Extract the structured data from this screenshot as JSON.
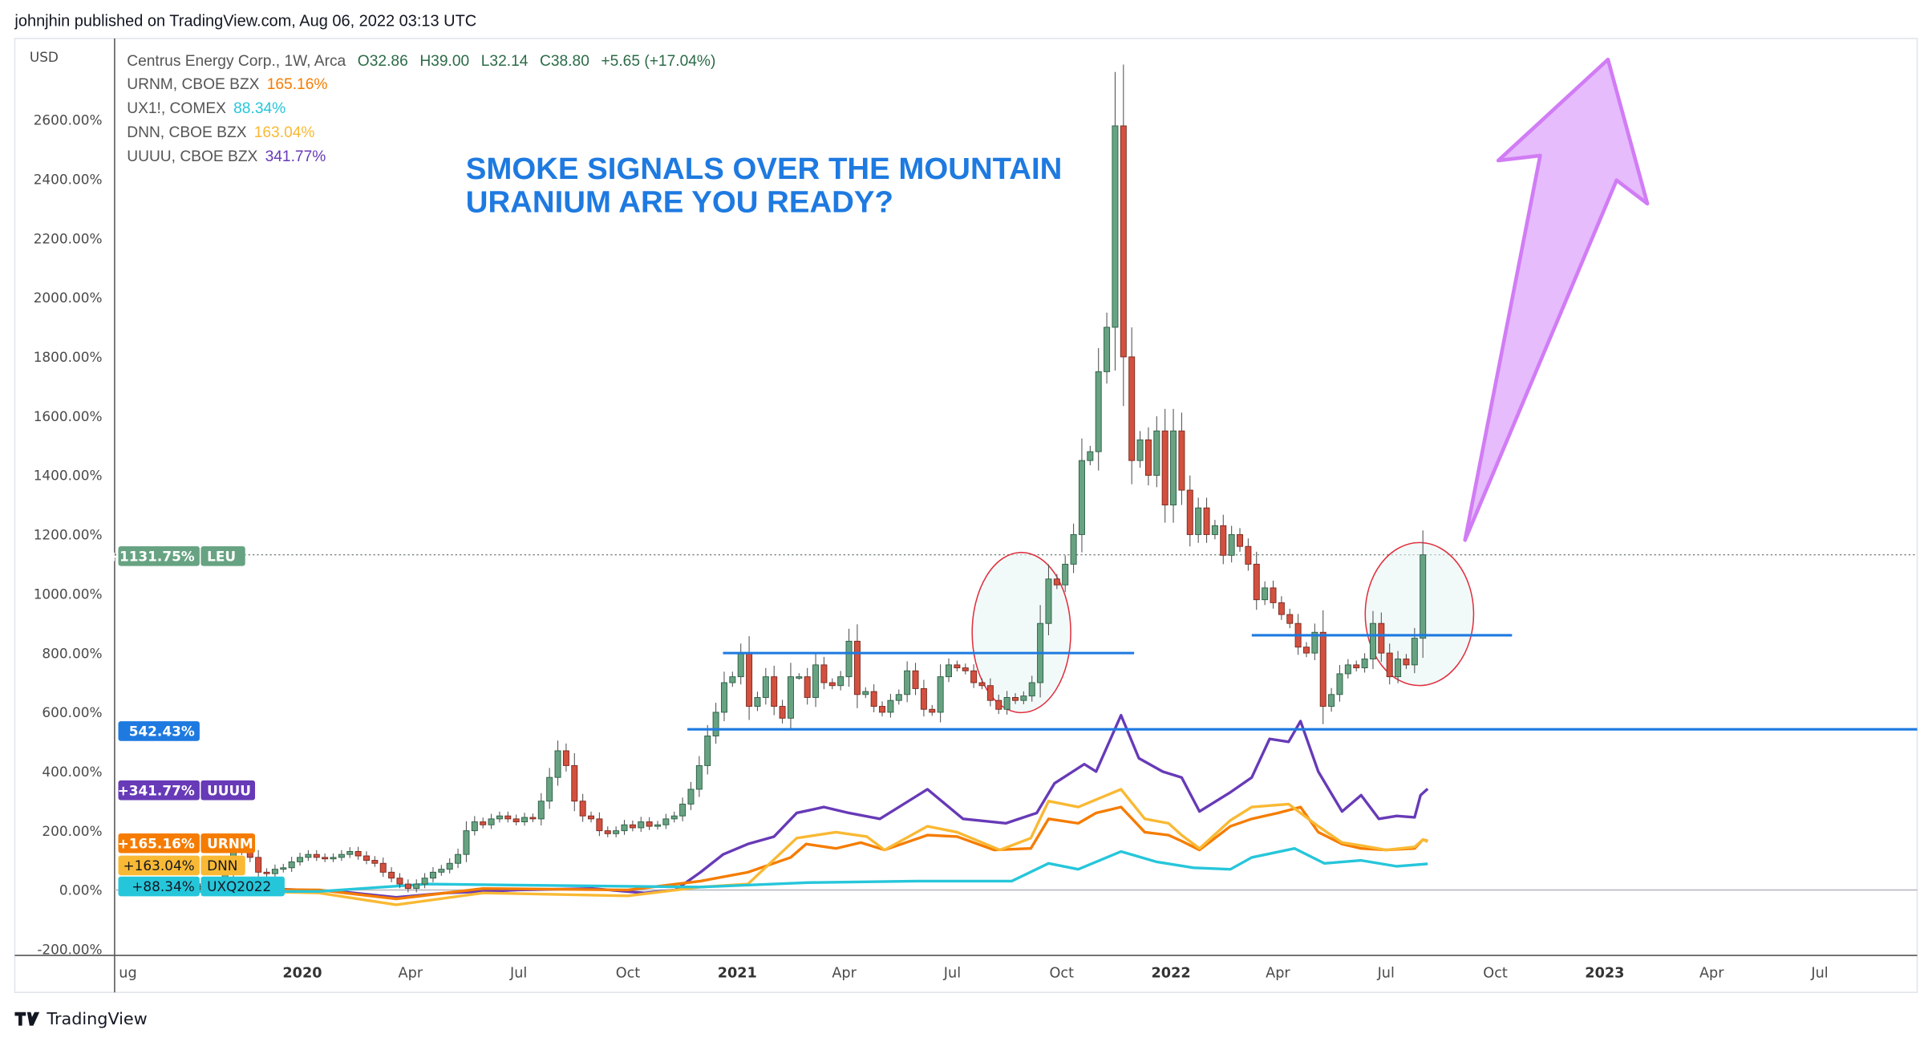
{
  "header": {
    "published": "johnjhin published on TradingView.com, Aug 06, 2022 03:13 UTC"
  },
  "footer": {
    "brand": "TradingView"
  },
  "legend": {
    "main": {
      "name": "Centrus Energy Corp., 1W, Arca",
      "o": "O32.86",
      "h": "H39.00",
      "l": "L32.14",
      "c": "C38.80",
      "chg": "+5.65 (+17.04%)"
    },
    "compares": [
      {
        "name": "URNM, CBOE BZX",
        "value": "165.16%",
        "color": "#f57c00"
      },
      {
        "name": "UX1!, COMEX",
        "value": "88.34%",
        "color": "#26c6da"
      },
      {
        "name": "DNN, CBOE BZX",
        "value": "163.04%",
        "color": "#f9b934"
      },
      {
        "name": "UUUU, CBOE BZX",
        "value": "341.77%",
        "color": "#673ab7"
      }
    ]
  },
  "annotation": {
    "line1": "SMOKE SIGNALS OVER THE MOUNTAIN",
    "line2": "URANIUM ARE YOU READY?",
    "color": "#1e7ae0"
  },
  "badges": [
    {
      "value": "+1131.75%",
      "label": "LEU",
      "color": "#67a382",
      "y_value": 1131.75
    },
    {
      "value": "542.43%",
      "label": "",
      "color": "#1e7ae0",
      "y_value": 542.43
    },
    {
      "value": "+341.77%",
      "label": "UUUU",
      "color": "#673ab7",
      "y_value": 341.77
    },
    {
      "value": "+165.16%",
      "label": "URNM",
      "color": "#f57c00",
      "y_value": 165.16
    },
    {
      "value": "+163.04%",
      "label": "DNN",
      "color": "#f9b934",
      "y_value": 163.04,
      "dark": true
    },
    {
      "value": "+88.34%",
      "label": "UXQ2022",
      "color": "#26c6da",
      "y_value": 88.34,
      "dark": true
    }
  ],
  "chart_data": {
    "type": "candlestick+line",
    "currency_label": "USD",
    "interval": "1W",
    "ylim": [
      -221,
      2875
    ],
    "xlim": [
      "2019-07-27",
      "2023-09-21"
    ],
    "y_ticks": [
      "-200.00%",
      "0.00%",
      "200.00%",
      "400.00%",
      "600.00%",
      "800.00%",
      "1000.00%",
      "1200.00%",
      "1400.00%",
      "1600.00%",
      "1800.00%",
      "2000.00%",
      "2200.00%",
      "2400.00%",
      "2600.00%"
    ],
    "x_ticks": [
      {
        "label": "ug",
        "date": "2019-08-01",
        "year": false
      },
      {
        "label": "2020",
        "date": "2020-01-01",
        "year": true
      },
      {
        "label": "Apr",
        "date": "2020-04-01",
        "year": false
      },
      {
        "label": "Jul",
        "date": "2020-07-01",
        "year": false
      },
      {
        "label": "Oct",
        "date": "2020-10-01",
        "year": false
      },
      {
        "label": "2021",
        "date": "2021-01-01",
        "year": true
      },
      {
        "label": "Apr",
        "date": "2021-04-01",
        "year": false
      },
      {
        "label": "Jul",
        "date": "2021-07-01",
        "year": false
      },
      {
        "label": "Oct",
        "date": "2021-10-01",
        "year": false
      },
      {
        "label": "2022",
        "date": "2022-01-01",
        "year": true
      },
      {
        "label": "Apr",
        "date": "2022-04-01",
        "year": false
      },
      {
        "label": "Jul",
        "date": "2022-07-01",
        "year": false
      },
      {
        "label": "Oct",
        "date": "2022-10-01",
        "year": false
      },
      {
        "label": "2023",
        "date": "2023-01-01",
        "year": true
      },
      {
        "label": "Apr",
        "date": "2023-04-01",
        "year": false
      },
      {
        "label": "Jul",
        "date": "2023-07-01",
        "year": false
      }
    ],
    "candles": {
      "name": "LEU",
      "first_date": "2019-10-07",
      "closes": [
        10,
        15,
        20,
        60,
        130,
        140,
        110,
        60,
        55,
        70,
        75,
        95,
        110,
        120,
        110,
        105,
        110,
        120,
        130,
        115,
        100,
        90,
        60,
        40,
        20,
        5,
        20,
        40,
        60,
        70,
        90,
        120,
        200,
        230,
        220,
        240,
        250,
        240,
        230,
        245,
        240,
        300,
        380,
        470,
        420,
        300,
        250,
        240,
        200,
        190,
        200,
        220,
        210,
        230,
        215,
        220,
        240,
        250,
        290,
        340,
        420,
        520,
        600,
        700,
        720,
        800,
        620,
        650,
        720,
        620,
        580,
        720,
        720,
        650,
        760,
        700,
        690,
        720,
        840,
        660,
        670,
        620,
        600,
        640,
        660,
        740,
        680,
        610,
        600,
        720,
        760,
        750,
        740,
        700,
        690,
        640,
        610,
        650,
        640,
        655,
        700,
        900,
        1050,
        1030,
        1100,
        1200,
        1450,
        1480,
        1750,
        1900,
        2580,
        1800,
        1450,
        1520,
        1400,
        1550,
        1300,
        1550,
        1350,
        1200,
        1290,
        1200,
        1230,
        1130,
        1200,
        1160,
        1100,
        980,
        1020,
        970,
        930,
        900,
        820,
        800,
        870,
        620,
        660,
        730,
        760,
        750,
        780,
        900,
        800,
        720,
        780,
        760,
        850,
        1131.75
      ],
      "up_color": "#67a382",
      "down_color": "#d3503f"
    },
    "series": [
      {
        "name": "UUUU",
        "color": "#673ab7",
        "points": [
          [
            "2019-10-01",
            10
          ],
          [
            "2019-12-01",
            5
          ],
          [
            "2020-02-01",
            -5
          ],
          [
            "2020-03-20",
            -25
          ],
          [
            "2020-05-01",
            -10
          ],
          [
            "2020-07-01",
            0
          ],
          [
            "2020-09-01",
            5
          ],
          [
            "2020-10-15",
            -10
          ],
          [
            "2020-11-10",
            0
          ],
          [
            "2020-12-01",
            60
          ],
          [
            "2020-12-20",
            120
          ],
          [
            "2021-01-10",
            155
          ],
          [
            "2021-02-01",
            180
          ],
          [
            "2021-02-20",
            260
          ],
          [
            "2021-03-15",
            280
          ],
          [
            "2021-04-05",
            260
          ],
          [
            "2021-05-01",
            240
          ],
          [
            "2021-06-10",
            340
          ],
          [
            "2021-07-10",
            240
          ],
          [
            "2021-08-15",
            225
          ],
          [
            "2021-09-10",
            260
          ],
          [
            "2021-09-25",
            360
          ],
          [
            "2021-10-20",
            425
          ],
          [
            "2021-10-30",
            400
          ],
          [
            "2021-11-20",
            590
          ],
          [
            "2021-12-05",
            445
          ],
          [
            "2021-12-25",
            400
          ],
          [
            "2022-01-10",
            380
          ],
          [
            "2022-01-25",
            265
          ],
          [
            "2022-02-20",
            330
          ],
          [
            "2022-03-10",
            380
          ],
          [
            "2022-03-25",
            510
          ],
          [
            "2022-04-10",
            500
          ],
          [
            "2022-04-20",
            570
          ],
          [
            "2022-05-05",
            400
          ],
          [
            "2022-05-25",
            265
          ],
          [
            "2022-06-10",
            320
          ],
          [
            "2022-06-25",
            240
          ],
          [
            "2022-07-10",
            250
          ],
          [
            "2022-07-25",
            245
          ],
          [
            "2022-07-30",
            320
          ],
          [
            "2022-08-05",
            341.77
          ]
        ]
      },
      {
        "name": "URNM",
        "color": "#f57c00",
        "points": [
          [
            "2019-10-01",
            5
          ],
          [
            "2020-01-15",
            0
          ],
          [
            "2020-03-20",
            -30
          ],
          [
            "2020-06-01",
            5
          ],
          [
            "2020-10-01",
            0
          ],
          [
            "2020-12-01",
            30
          ],
          [
            "2021-01-10",
            60
          ],
          [
            "2021-02-15",
            110
          ],
          [
            "2021-02-28",
            155
          ],
          [
            "2021-03-25",
            140
          ],
          [
            "2021-04-15",
            160
          ],
          [
            "2021-05-05",
            135
          ],
          [
            "2021-06-10",
            185
          ],
          [
            "2021-07-05",
            180
          ],
          [
            "2021-08-05",
            135
          ],
          [
            "2021-09-05",
            140
          ],
          [
            "2021-09-20",
            240
          ],
          [
            "2021-10-15",
            225
          ],
          [
            "2021-10-30",
            260
          ],
          [
            "2021-11-20",
            280
          ],
          [
            "2021-12-10",
            195
          ],
          [
            "2021-12-30",
            185
          ],
          [
            "2022-01-10",
            165
          ],
          [
            "2022-01-25",
            135
          ],
          [
            "2022-02-20",
            215
          ],
          [
            "2022-03-10",
            240
          ],
          [
            "2022-04-01",
            260
          ],
          [
            "2022-04-20",
            280
          ],
          [
            "2022-05-05",
            195
          ],
          [
            "2022-05-25",
            155
          ],
          [
            "2022-06-10",
            140
          ],
          [
            "2022-07-01",
            135
          ],
          [
            "2022-07-25",
            140
          ],
          [
            "2022-08-01",
            170
          ],
          [
            "2022-08-05",
            165.16
          ]
        ]
      },
      {
        "name": "DNN",
        "color": "#f9b934",
        "points": [
          [
            "2019-10-01",
            0
          ],
          [
            "2020-01-15",
            -10
          ],
          [
            "2020-03-20",
            -50
          ],
          [
            "2020-06-01",
            -10
          ],
          [
            "2020-10-01",
            -20
          ],
          [
            "2020-12-01",
            10
          ],
          [
            "2021-01-10",
            20
          ],
          [
            "2021-02-20",
            175
          ],
          [
            "2021-03-25",
            195
          ],
          [
            "2021-04-20",
            180
          ],
          [
            "2021-05-05",
            135
          ],
          [
            "2021-06-10",
            215
          ],
          [
            "2021-07-05",
            195
          ],
          [
            "2021-08-10",
            135
          ],
          [
            "2021-09-05",
            175
          ],
          [
            "2021-09-20",
            300
          ],
          [
            "2021-10-15",
            280
          ],
          [
            "2021-11-20",
            340
          ],
          [
            "2021-12-10",
            240
          ],
          [
            "2021-12-30",
            225
          ],
          [
            "2022-01-10",
            185
          ],
          [
            "2022-01-25",
            140
          ],
          [
            "2022-02-20",
            235
          ],
          [
            "2022-03-10",
            280
          ],
          [
            "2022-04-10",
            290
          ],
          [
            "2022-05-05",
            215
          ],
          [
            "2022-05-25",
            160
          ],
          [
            "2022-06-10",
            150
          ],
          [
            "2022-07-01",
            135
          ],
          [
            "2022-07-25",
            145
          ],
          [
            "2022-08-01",
            170
          ],
          [
            "2022-08-05",
            163.04
          ]
        ]
      },
      {
        "name": "UXQ2022",
        "color": "#26c6da",
        "points": [
          [
            "2019-10-01",
            -5
          ],
          [
            "2020-01-15",
            -5
          ],
          [
            "2020-04-15",
            20
          ],
          [
            "2020-08-01",
            15
          ],
          [
            "2020-12-01",
            10
          ],
          [
            "2021-03-01",
            25
          ],
          [
            "2021-06-01",
            30
          ],
          [
            "2021-08-20",
            30
          ],
          [
            "2021-09-20",
            90
          ],
          [
            "2021-10-15",
            70
          ],
          [
            "2021-11-20",
            130
          ],
          [
            "2021-12-20",
            95
          ],
          [
            "2022-01-20",
            75
          ],
          [
            "2022-02-20",
            70
          ],
          [
            "2022-03-10",
            110
          ],
          [
            "2022-04-15",
            140
          ],
          [
            "2022-05-10",
            90
          ],
          [
            "2022-06-10",
            100
          ],
          [
            "2022-07-10",
            80
          ],
          [
            "2022-08-05",
            88.34
          ]
        ]
      }
    ],
    "drawings": {
      "hlines": [
        {
          "y": 800,
          "from": "2020-12-20",
          "to": "2021-12-01",
          "color": "#1e7ae0"
        },
        {
          "y": 542.43,
          "from": "2020-11-20",
          "to": "2023-09-21",
          "color": "#1e7ae0"
        },
        {
          "y": 860,
          "from": "2022-03-10",
          "to": "2022-10-15",
          "color": "#1e7ae0"
        }
      ],
      "current_price_line": 1131.75
    }
  }
}
